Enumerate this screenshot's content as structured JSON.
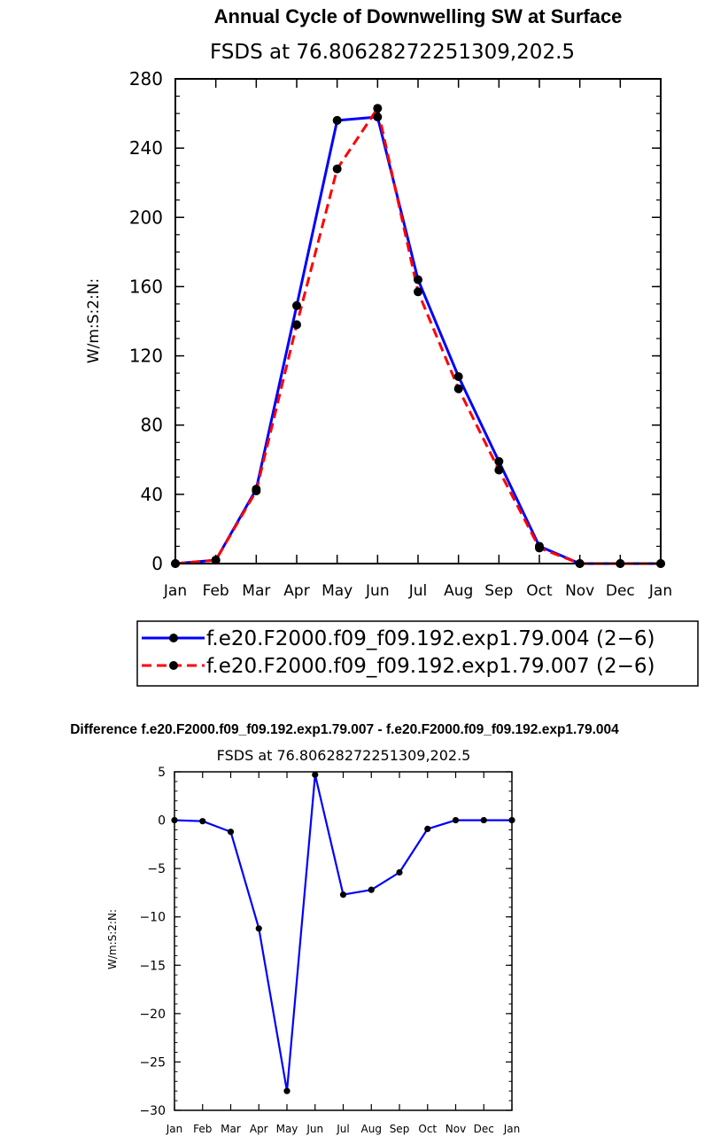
{
  "chart_data": [
    {
      "type": "line",
      "title": "Annual Cycle of Downwelling SW at Surface",
      "subtitle": "FSDS at 76.80628272251309,202.5",
      "ylabel": "W/m:S:2:N:",
      "xlabel": "",
      "categories": [
        "Jan",
        "Feb",
        "Mar",
        "Apr",
        "May",
        "Jun",
        "Jul",
        "Aug",
        "Sep",
        "Oct",
        "Nov",
        "Dec",
        "Jan"
      ],
      "ylim": [
        0,
        280
      ],
      "yticks": [
        "0",
        "40",
        "80",
        "120",
        "160",
        "200",
        "240",
        "280"
      ],
      "legend_position": "bottom",
      "series": [
        {
          "name": "f.e20.F2000.f09_f09.192.exp1.79.004 (2−6)",
          "color": "#0000ff",
          "style": "solid",
          "values": [
            0,
            2,
            43,
            149,
            256,
            258,
            164,
            108,
            59,
            10,
            0,
            0,
            0
          ]
        },
        {
          "name": "f.e20.F2000.f09_f09.192.exp1.79.007 (2−6)",
          "color": "#ff0000",
          "style": "dashed",
          "values": [
            0,
            2,
            42,
            138,
            228,
            263,
            157,
            101,
            54,
            9,
            0,
            0,
            0
          ]
        }
      ]
    },
    {
      "type": "line",
      "title": "Difference f.e20.F2000.f09_f09.192.exp1.79.007 - f.e20.F2000.f09_f09.192.exp1.79.004",
      "subtitle": "FSDS at 76.80628272251309,202.5",
      "ylabel": "W/m:S:2:N:",
      "xlabel": "",
      "categories": [
        "Jan",
        "Feb",
        "Mar",
        "Apr",
        "May",
        "Jun",
        "Jul",
        "Aug",
        "Sep",
        "Oct",
        "Nov",
        "Dec",
        "Jan"
      ],
      "ylim": [
        -30,
        5
      ],
      "yticks": [
        "5",
        "0",
        "−5",
        "−10",
        "−15",
        "−20",
        "−25",
        "−30"
      ],
      "series": [
        {
          "color": "#0000ff",
          "style": "solid",
          "values": [
            0,
            -0.1,
            -1.2,
            -11.2,
            -28,
            4.7,
            -7.7,
            -7.2,
            -5.4,
            -0.9,
            0,
            0,
            0
          ]
        }
      ]
    }
  ]
}
